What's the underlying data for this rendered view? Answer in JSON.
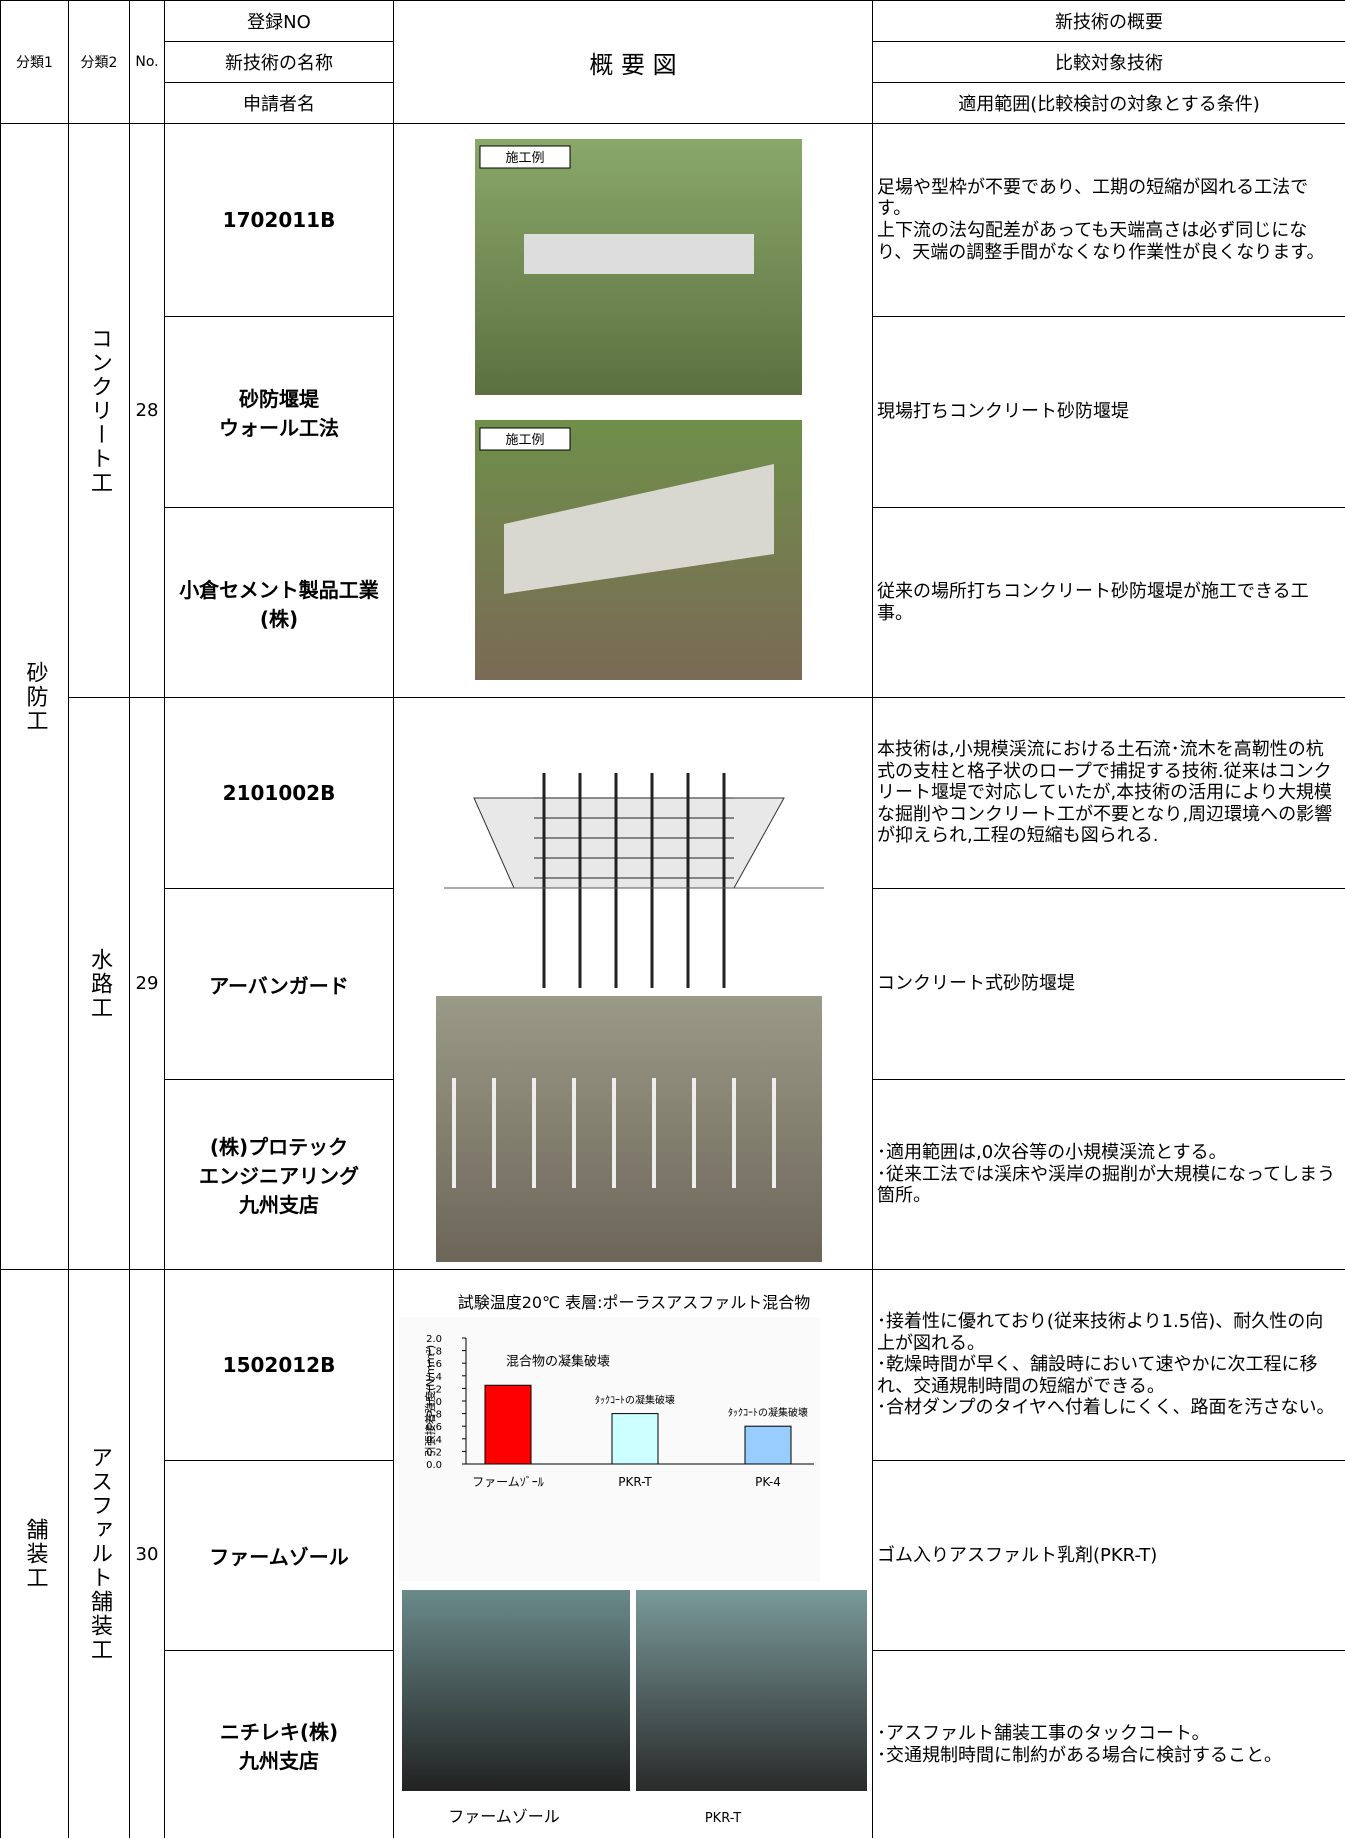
{
  "header": {
    "category1": "分類1",
    "category2": "分類2",
    "number": "No.",
    "name_column": [
      "登録NO",
      "新技術の名称",
      "申請者名"
    ],
    "diagram": "概 要 図",
    "summary_column": [
      "新技術の概要",
      "比較対象技術",
      "適用範囲(比較検討の対象とする条件)"
    ]
  },
  "category1": [
    "砂防工",
    "舗装工"
  ],
  "entries": [
    {
      "category2": "コンクリート工",
      "number": "28",
      "registration_no": "1702011B",
      "name": "砂防堰堤\nウォール工法",
      "applicant": "小倉セメント製品工業\n(株)",
      "overview": "足場や型枠が不要であり、工期の短縮が図れる工法です。\n上下流の法勾配差があっても天端高さは必ず同じになり、天端の調整手間がなくなり作業性が良くなります。",
      "comparison": "現場打ちコンクリート砂防堰堤",
      "scope": "従来の場所打ちコンクリート砂防堰堤が施工できる工事。",
      "photo_labels": [
        "施工例",
        "施工例"
      ]
    },
    {
      "category2": "水路工",
      "number": "29",
      "registration_no": "2101002B",
      "name": "アーバンガード",
      "applicant": "(株)プロテック\nエンジニアリング\n九州支店",
      "overview": "本技術は,小規模渓流における土石流･流木を高靭性の杭式の支柱と格子状のロープで捕捉する技術.従来はコンクリート堰堤で対応していたが,本技術の活用により大規模な掘削やコンクリート工が不要となり,周辺環境への影響が抑えられ,工程の短縮も図られる.",
      "comparison": "コンクリート式砂防堰堤",
      "scope": "･適用範囲は,0次谷等の小規模渓流とする。\n･従来工法では渓床や渓岸の掘削が大規模になってしまう箇所。"
    },
    {
      "category2": "アスファルト舗装工",
      "number": "30",
      "registration_no": "1502012B",
      "name": "ファームゾール",
      "applicant": "ニチレキ(株)\n九州支店",
      "overview": "･接着性に優れており(従来技術より1.5倍)、耐久性の向上が図れる。\n･乾燥時間が早く、舗設時において速やかに次工程に移れ、交通規制時間の短縮ができる。\n･合材ダンプのタイヤへ付着しにくく、路面を汚さない。",
      "comparison": "ゴム入りアスファルト乳剤(PKR-T)",
      "scope": "･アスファルト舗装工事のタックコート。\n･交通規制時間に制約がある場合に検討すること。",
      "photo_captions": [
        "ファームゾール",
        "PKR-T"
      ],
      "chart_data": {
        "type": "bar",
        "title": "試験温度20℃ 表層:ポーラスアスファルト混合物",
        "y_label": "引張接着強度(N/mm²)",
        "categories": [
          "ファームｿﾞｰﾙ",
          "PKR-T",
          "PK-4"
        ],
        "values": [
          1.25,
          0.8,
          0.6
        ],
        "colors": [
          "#ff0000",
          "#ccffff",
          "#99ccff"
        ],
        "annotations": [
          "混合物の凝集破壊",
          "ﾀｯｸｺｰﾄの凝集破壊",
          "ﾀｯｸｺｰﾄの凝集破壊"
        ],
        "ylim": [
          0,
          2
        ],
        "yticks": [
          {
            "value": 0,
            "label": "0.0"
          },
          0.2,
          0.4,
          0.6,
          0.8,
          {
            "value": 1,
            "label": "1.0"
          },
          1.2,
          1.4,
          1.6,
          1.8,
          {
            "value": 2,
            "label": "2.0"
          }
        ]
      }
    }
  ]
}
